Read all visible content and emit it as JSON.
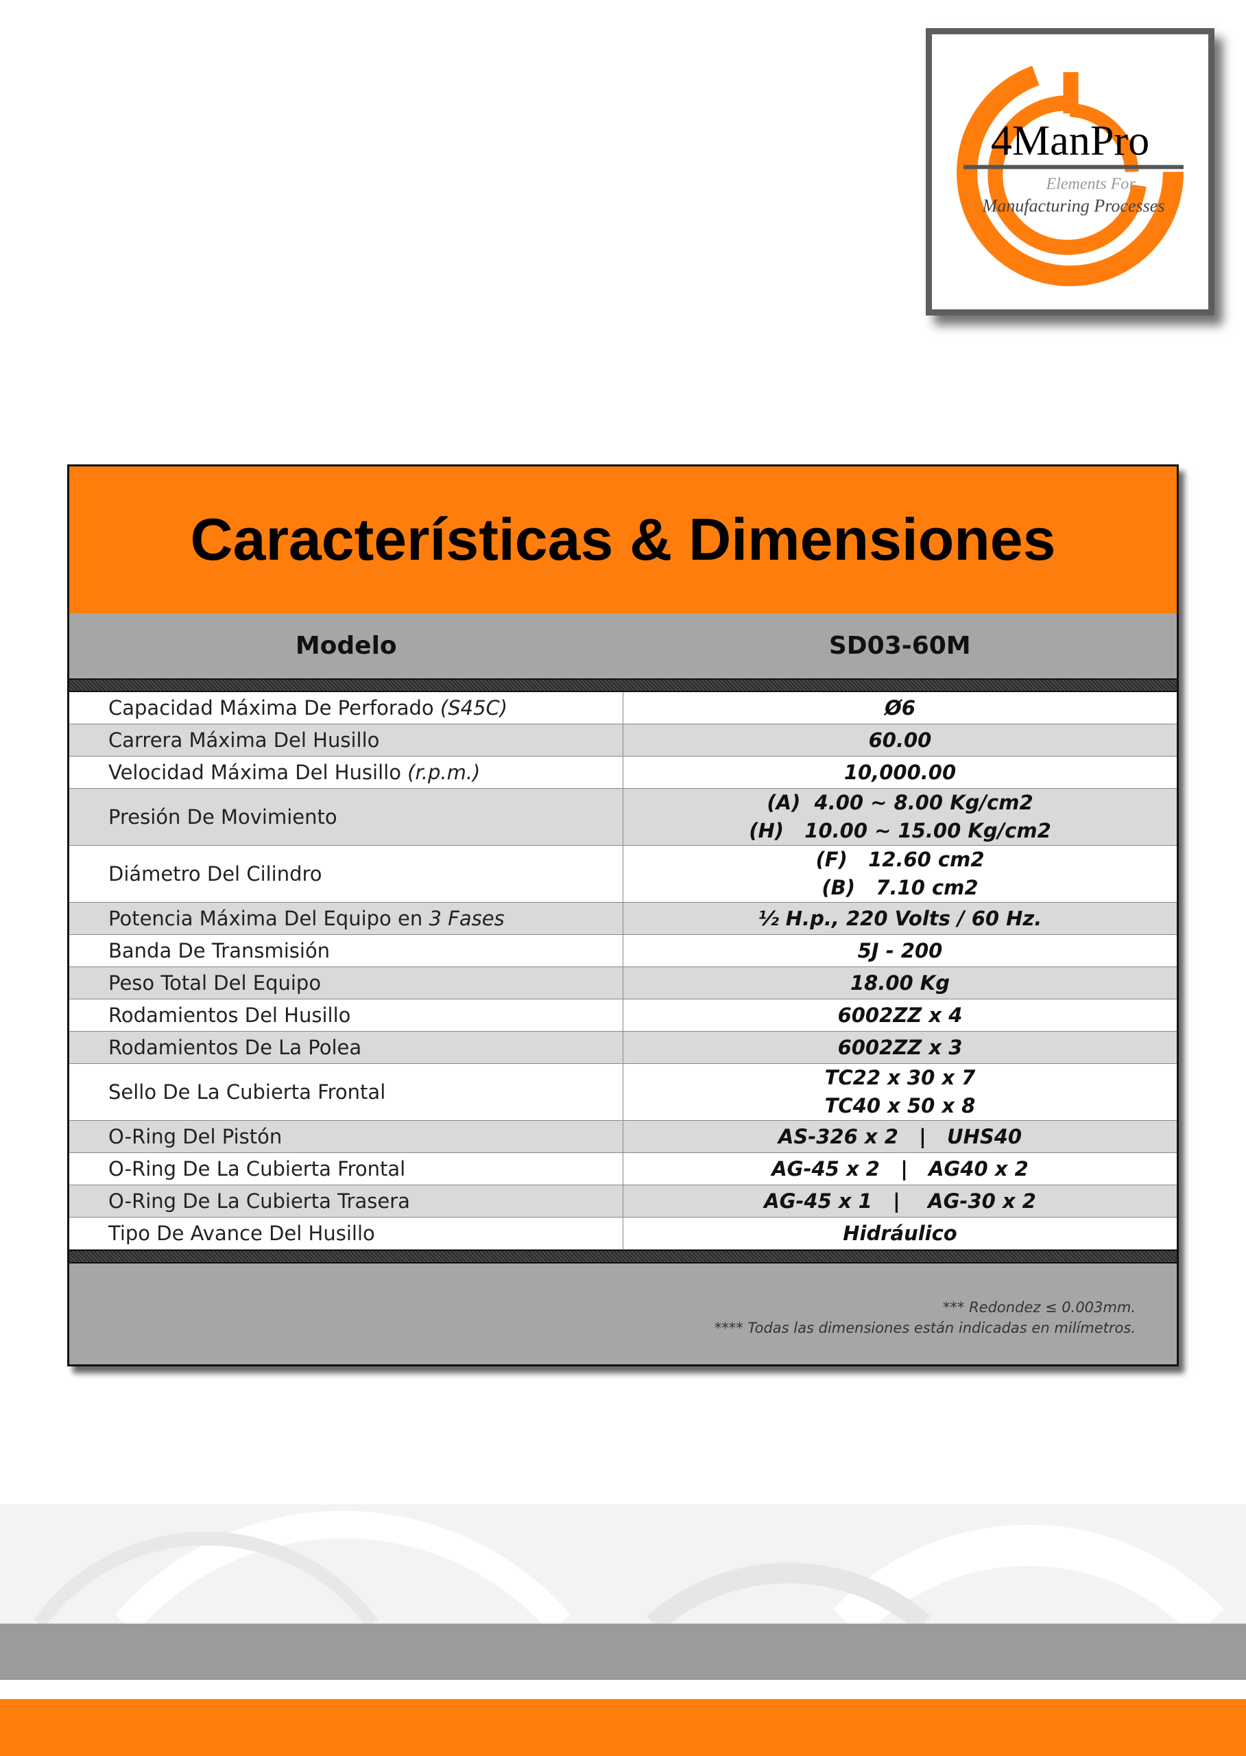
{
  "logo": {
    "brand": "4ManPro",
    "tagline_1": "Elements For",
    "tagline_2": "Manufacturing Processes",
    "accent": "#ff7d0c"
  },
  "title": "Características & Dimensiones",
  "header": {
    "col1": "Modelo",
    "col2": "SD03-60M"
  },
  "rows": [
    {
      "label": "Capacidad Máxima De Perforado ",
      "label_italic": "(S45C)",
      "values": [
        "Ø6"
      ]
    },
    {
      "label": "Carrera Máxima Del Husillo",
      "label_italic": "",
      "values": [
        "60.00"
      ]
    },
    {
      "label": "Velocidad Máxima Del Husillo ",
      "label_italic": "(r.p.m.)",
      "values": [
        "10,000.00"
      ]
    },
    {
      "label": "Presión De Movimiento",
      "label_italic": "",
      "values": [
        "(A)  4.00 ~ 8.00 Kg/cm2",
        "(H)   10.00 ~ 15.00 Kg/cm2"
      ]
    },
    {
      "label": "Diámetro Del Cilindro",
      "label_italic": "",
      "values": [
        "(F)   12.60 cm2",
        "(B)   7.10 cm2"
      ]
    },
    {
      "label": "Potencia Máxima Del Equipo en ",
      "label_italic": "3 Fases",
      "values": [
        "½ H.p., 220 Volts / 60 Hz."
      ]
    },
    {
      "label": "Banda De Transmisión",
      "label_italic": "",
      "values": [
        "5J - 200"
      ]
    },
    {
      "label": "Peso Total Del Equipo",
      "label_italic": "",
      "values": [
        "18.00 Kg"
      ]
    },
    {
      "label": "Rodamientos Del Husillo",
      "label_italic": "",
      "values": [
        "6002ZZ x 4"
      ]
    },
    {
      "label": "Rodamientos De La Polea",
      "label_italic": "",
      "values": [
        "6002ZZ x 3"
      ]
    },
    {
      "label": "Sello De La Cubierta Frontal",
      "label_italic": "",
      "values": [
        "TC22 x 30 x 7",
        "TC40 x 50 x 8"
      ]
    },
    {
      "label": "O-Ring Del Pistón",
      "label_italic": "",
      "values": [
        "AS-326 x 2   |   UHS40"
      ]
    },
    {
      "label": "O-Ring De La Cubierta Frontal",
      "label_italic": "",
      "values": [
        "AG-45 x 2   |   AG40 x 2"
      ]
    },
    {
      "label": "O-Ring De La Cubierta Trasera",
      "label_italic": "",
      "values": [
        "AG-45 x 1   |    AG-30 x 2"
      ]
    },
    {
      "label": "Tipo De Avance Del Husillo",
      "label_italic": "",
      "values": [
        "Hidráulico"
      ]
    }
  ],
  "notes": [
    "*** Redondez ≤ 0.003mm.",
    "****   Todas las dimensiones están indicadas en milímetros."
  ]
}
